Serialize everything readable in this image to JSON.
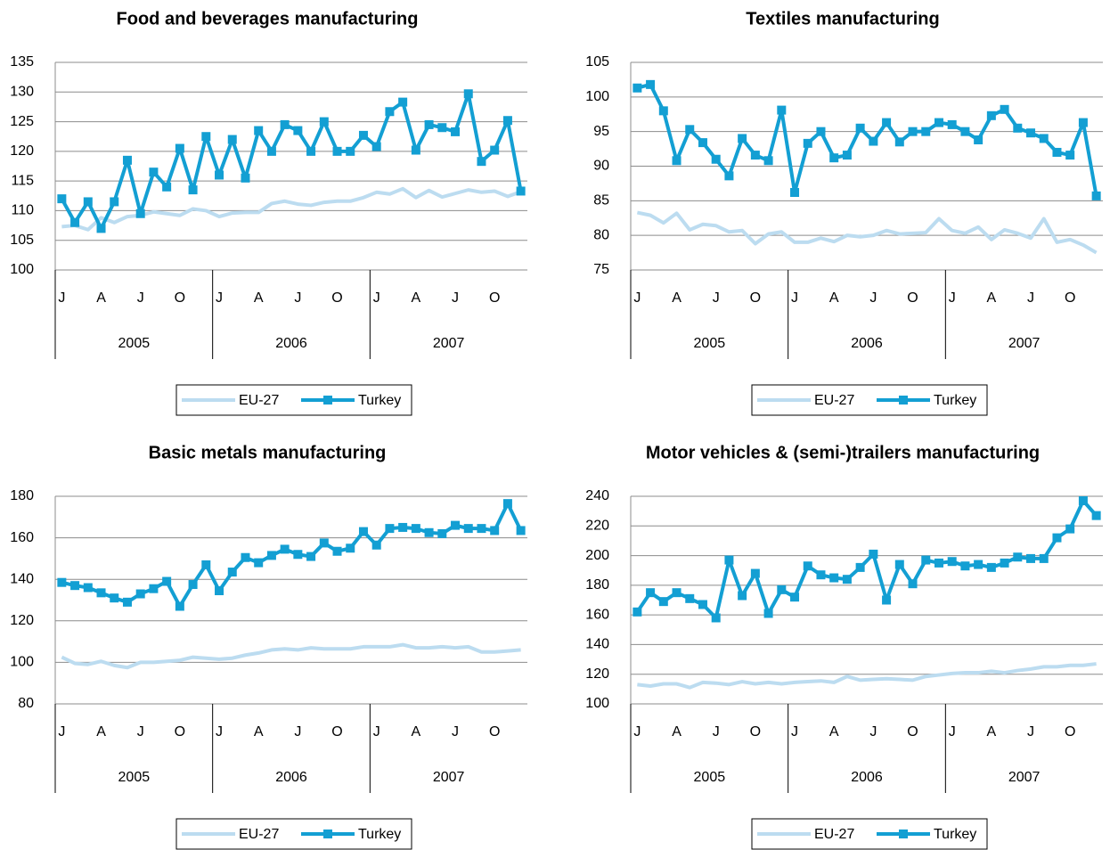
{
  "chart_data": [
    {
      "type": "line",
      "title": "Food and beverages manufacturing",
      "categories": [
        "J",
        null,
        null,
        "A",
        null,
        null,
        "J",
        null,
        null,
        "O",
        null,
        null,
        "J",
        null,
        null,
        "A",
        null,
        null,
        "J",
        null,
        null,
        "O",
        null,
        null,
        "J",
        null,
        null,
        "A",
        null,
        null,
        "J",
        null,
        null,
        "O",
        null,
        null
      ],
      "x_groups": [
        "2005",
        "2006",
        "2007"
      ],
      "ylim": [
        100,
        135
      ],
      "yticks": [
        100,
        105,
        110,
        115,
        120,
        125,
        130,
        135
      ],
      "grid": true,
      "legend": "bottom",
      "series": [
        {
          "name": "EU-27",
          "color": "#bcdcf0",
          "marker": false,
          "values": [
            107.3,
            107.5,
            106.8,
            108.8,
            108,
            109,
            109.2,
            109.8,
            109.5,
            109.2,
            110.3,
            110,
            109,
            109.6,
            109.7,
            109.7,
            111.2,
            111.6,
            111.1,
            110.9,
            111.4,
            111.6,
            111.6,
            112.2,
            113.1,
            112.8,
            113.7,
            112.2,
            113.4,
            112.3,
            112.9,
            113.5,
            113.1,
            113.3,
            112.4,
            113.2
          ]
        },
        {
          "name": "Turkey",
          "color": "#139fd3",
          "marker": true,
          "values": [
            112,
            108,
            111.5,
            107,
            111.5,
            118.5,
            109.5,
            116.5,
            114,
            120.5,
            113.5,
            122.5,
            116,
            122,
            115.5,
            123.5,
            120,
            124.5,
            123.5,
            120,
            125,
            120,
            120,
            122.7,
            120.8,
            126.7,
            128.3,
            120.2,
            124.5,
            124,
            123.3,
            129.7,
            118.3,
            120.2,
            125.2,
            113.3
          ]
        }
      ]
    },
    {
      "type": "line",
      "title": "Textiles manufacturing",
      "categories": [
        "J",
        null,
        null,
        "A",
        null,
        null,
        "J",
        null,
        null,
        "O",
        null,
        null,
        "J",
        null,
        null,
        "A",
        null,
        null,
        "J",
        null,
        null,
        "O",
        null,
        null,
        "J",
        null,
        null,
        "A",
        null,
        null,
        "J",
        null,
        null,
        "O",
        null,
        null
      ],
      "x_groups": [
        "2005",
        "2006",
        "2007"
      ],
      "ylim": [
        75,
        105
      ],
      "yticks": [
        75,
        80,
        85,
        90,
        95,
        100,
        105
      ],
      "grid": true,
      "legend": "bottom",
      "series": [
        {
          "name": "EU-27",
          "color": "#bcdcf0",
          "marker": false,
          "values": [
            83.3,
            82.9,
            81.8,
            83.2,
            80.8,
            81.6,
            81.4,
            80.5,
            80.7,
            78.8,
            80.2,
            80.5,
            79,
            79,
            79.6,
            79.1,
            80,
            79.8,
            80,
            80.7,
            80.2,
            80.3,
            80.4,
            82.4,
            80.7,
            80.3,
            81.2,
            79.4,
            80.8,
            80.3,
            79.6,
            82.4,
            79,
            79.4,
            78.6,
            77.5
          ]
        },
        {
          "name": "Turkey",
          "color": "#139fd3",
          "marker": true,
          "values": [
            101.3,
            101.8,
            98,
            90.8,
            95.3,
            93.4,
            91,
            88.6,
            94,
            91.6,
            90.8,
            98.1,
            86.2,
            93.3,
            95,
            91.2,
            91.6,
            95.5,
            93.6,
            96.3,
            93.5,
            95,
            95,
            96.3,
            96,
            95,
            93.8,
            97.3,
            98.2,
            95.5,
            94.8,
            94,
            92,
            91.6,
            96.3,
            85.7
          ]
        }
      ]
    },
    {
      "type": "line",
      "title": "Basic metals manufacturing",
      "categories": [
        "J",
        null,
        null,
        "A",
        null,
        null,
        "J",
        null,
        null,
        "O",
        null,
        null,
        "J",
        null,
        null,
        "A",
        null,
        null,
        "J",
        null,
        null,
        "O",
        null,
        null,
        "J",
        null,
        null,
        "A",
        null,
        null,
        "J",
        null,
        null,
        "O",
        null,
        null
      ],
      "x_groups": [
        "2005",
        "2006",
        "2007"
      ],
      "ylim": [
        80,
        180
      ],
      "yticks": [
        80,
        100,
        120,
        140,
        160,
        180
      ],
      "grid": true,
      "legend": "bottom",
      "series": [
        {
          "name": "EU-27",
          "color": "#bcdcf0",
          "marker": false,
          "values": [
            102.5,
            99.5,
            99,
            100.5,
            98.5,
            97.5,
            100,
            100,
            100.5,
            101,
            102.5,
            102,
            101.5,
            102,
            103.5,
            104.5,
            106,
            106.5,
            106,
            107,
            106.5,
            106.5,
            106.5,
            107.5,
            107.5,
            107.5,
            108.5,
            107,
            107,
            107.5,
            107,
            107.5,
            105,
            105,
            105.5,
            106
          ]
        },
        {
          "name": "Turkey",
          "color": "#139fd3",
          "marker": true,
          "values": [
            138.5,
            137,
            136,
            133.5,
            131,
            129,
            133,
            135.5,
            139,
            127,
            137.5,
            147,
            134.5,
            143.5,
            150.5,
            148,
            151.5,
            154.5,
            152,
            151,
            157.5,
            153.5,
            155,
            163,
            156.5,
            164.5,
            165,
            164.5,
            162.5,
            162,
            166,
            164.5,
            164.5,
            163.5,
            176.5,
            163.5
          ]
        }
      ]
    },
    {
      "type": "line",
      "title": "Motor vehicles & (semi-)trailers manufacturing",
      "categories": [
        "J",
        null,
        null,
        "A",
        null,
        null,
        "J",
        null,
        null,
        "O",
        null,
        null,
        "J",
        null,
        null,
        "A",
        null,
        null,
        "J",
        null,
        null,
        "O",
        null,
        null,
        "J",
        null,
        null,
        "A",
        null,
        null,
        "J",
        null,
        null,
        "O",
        null,
        null
      ],
      "x_groups": [
        "2005",
        "2006",
        "2007"
      ],
      "ylim": [
        100,
        240
      ],
      "yticks": [
        100,
        120,
        140,
        160,
        180,
        200,
        220,
        240
      ],
      "grid": true,
      "legend": "bottom",
      "series": [
        {
          "name": "EU-27",
          "color": "#bcdcf0",
          "marker": false,
          "values": [
            113,
            112,
            113.5,
            113.5,
            111,
            114.5,
            114,
            113,
            115,
            113.5,
            114.5,
            113.5,
            114.5,
            115,
            115.5,
            114.5,
            118.5,
            116,
            116.5,
            117,
            116.5,
            116,
            118.5,
            119.5,
            120.5,
            121,
            121,
            122,
            121,
            122.5,
            123.5,
            125,
            125,
            126,
            126,
            127
          ]
        },
        {
          "name": "Turkey",
          "color": "#139fd3",
          "marker": true,
          "values": [
            162,
            175,
            169,
            175,
            171,
            167,
            158,
            197,
            173,
            188,
            161,
            177,
            172,
            193,
            187,
            185,
            184,
            192,
            201,
            170,
            194,
            181,
            197,
            195,
            196,
            193,
            194,
            192,
            195,
            199,
            198,
            198,
            212,
            218,
            237,
            227
          ]
        }
      ]
    }
  ]
}
